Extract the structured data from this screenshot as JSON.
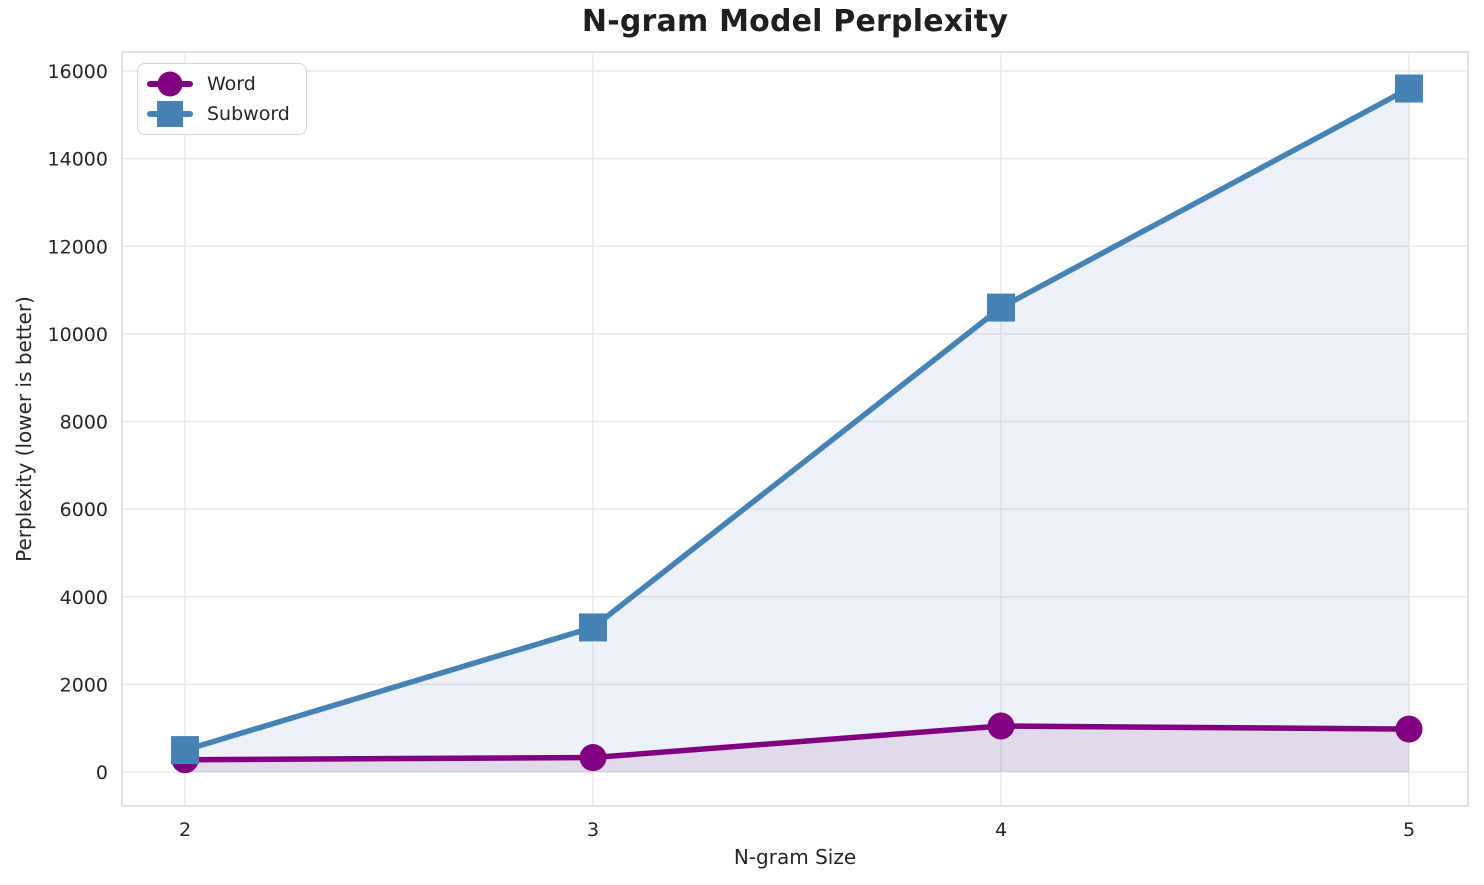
{
  "chart_data": {
    "type": "line",
    "title": "N-gram Model Perplexity",
    "xlabel": "N-gram Size",
    "ylabel": "Perplexity (lower is better)",
    "x": [
      2,
      3,
      4,
      5
    ],
    "series": [
      {
        "name": "Word",
        "values": [
          280,
          330,
          1050,
          980
        ],
        "color": "#800080",
        "marker": "circle"
      },
      {
        "name": "Subword",
        "values": [
          500,
          3300,
          10600,
          15600
        ],
        "color": "#4682B4",
        "marker": "square"
      }
    ],
    "xticks": [
      2,
      3,
      4,
      5
    ],
    "yticks": [
      0,
      2000,
      4000,
      6000,
      8000,
      10000,
      12000,
      14000,
      16000
    ],
    "ylim": [
      0,
      16000
    ],
    "grid": true,
    "area_fill": true,
    "area_fill_opacity": 0.1,
    "legend_position": "upper-left",
    "colors": {
      "grid": "#E8E8E8",
      "spine": "#D9D9D9",
      "tick_text": "#262626",
      "title_text": "#1F1F1F",
      "background": "#FFFFFF"
    }
  }
}
